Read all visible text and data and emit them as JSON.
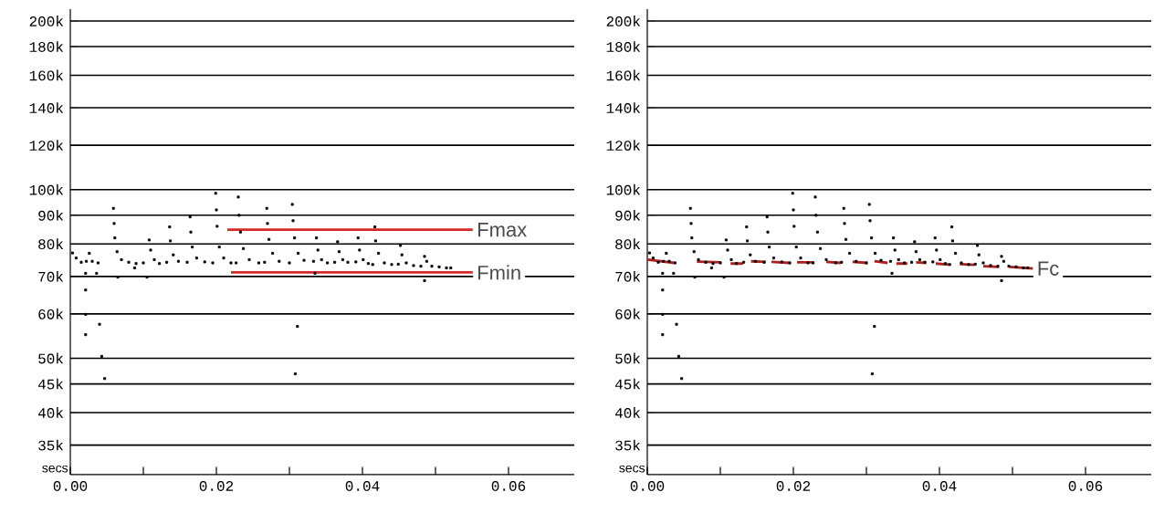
{
  "chart_data": [
    {
      "type": "scatter",
      "xlabel": "secs",
      "log": true,
      "grid": "y",
      "marker": "square",
      "xlim": [
        0,
        0.069
      ],
      "ylim": [
        31000,
        210000
      ],
      "xticks": [
        {
          "value": 0,
          "label": "0.00"
        },
        {
          "value": 0.01,
          "label": null
        },
        {
          "value": 0.02,
          "label": "0.02"
        },
        {
          "value": 0.03,
          "label": null
        },
        {
          "value": 0.04,
          "label": "0.04"
        },
        {
          "value": 0.05,
          "label": null
        },
        {
          "value": 0.06,
          "label": "0.06"
        }
      ],
      "yticks": [
        {
          "value": 35000,
          "label": "35k"
        },
        {
          "value": 40000,
          "label": "40k"
        },
        {
          "value": 45000,
          "label": "45k"
        },
        {
          "value": 50000,
          "label": "50k"
        },
        {
          "value": 60000,
          "label": "60k"
        },
        {
          "value": 70000,
          "label": "70k"
        },
        {
          "value": 80000,
          "label": "80k"
        },
        {
          "value": 90000,
          "label": "90k"
        },
        {
          "value": 100000,
          "label": "100k"
        },
        {
          "value": 120000,
          "label": "120k"
        },
        {
          "value": 140000,
          "label": "140k"
        },
        {
          "value": 160000,
          "label": "160k"
        },
        {
          "value": 180000,
          "label": "180k"
        },
        {
          "value": 200000,
          "label": "200k"
        }
      ],
      "series": [
        {
          "color": "#000000",
          "x": [
            0.0003,
            0.0008,
            0.0015,
            0.0022,
            0.0026,
            0.003,
            0.0038,
            0.0021,
            0.0021,
            0.0021,
            0.0021,
            0.004,
            0.0043,
            0.0047,
            0.0036,
            0.0059,
            0.006,
            0.0061,
            0.0064,
            0.007,
            0.008,
            0.009,
            0.01,
            0.0065,
            0.0105,
            0.0088,
            0.0108,
            0.011,
            0.0115,
            0.0122,
            0.0132,
            0.0136,
            0.0137,
            0.0141,
            0.0148,
            0.016,
            0.0164,
            0.0165,
            0.0167,
            0.0173,
            0.0184,
            0.0195,
            0.0199,
            0.02,
            0.0201,
            0.0204,
            0.021,
            0.022,
            0.0227,
            0.023,
            0.0231,
            0.0233,
            0.0237,
            0.0245,
            0.0258,
            0.0266,
            0.0269,
            0.027,
            0.0272,
            0.0277,
            0.0286,
            0.03,
            0.0304,
            0.0305,
            0.0307,
            0.0312,
            0.032,
            0.0333,
            0.0311,
            0.0308,
            0.0335,
            0.0337,
            0.0339,
            0.0344,
            0.0352,
            0.0362,
            0.0366,
            0.0368,
            0.0373,
            0.038,
            0.0391,
            0.0394,
            0.0396,
            0.0401,
            0.0408,
            0.0414,
            0.0417,
            0.0418,
            0.0422,
            0.043,
            0.044,
            0.0449,
            0.0452,
            0.0454,
            0.046,
            0.047,
            0.048,
            0.0485,
            0.0488,
            0.0495,
            0.0505,
            0.0515,
            0.0521,
            0.0485
          ],
          "values": [
            77100,
            75500,
            74200,
            74500,
            77000,
            74500,
            74000,
            70900,
            66200,
            59900,
            55100,
            57500,
            50400,
            46000,
            70900,
            92600,
            87000,
            82000,
            77500,
            75000,
            74200,
            73800,
            74000,
            69800,
            69800,
            72500,
            81300,
            78000,
            75000,
            73800,
            74200,
            85800,
            81000,
            76500,
            74500,
            74200,
            89400,
            84000,
            79000,
            75500,
            74300,
            74000,
            98500,
            92000,
            86000,
            79000,
            75500,
            74000,
            74000,
            97000,
            90000,
            84000,
            78500,
            75000,
            74000,
            74200,
            92600,
            87000,
            81500,
            77000,
            74500,
            74000,
            94100,
            88000,
            82000,
            77000,
            74800,
            74500,
            57000,
            46900,
            70900,
            82000,
            78000,
            75000,
            74000,
            74200,
            80700,
            77500,
            75000,
            74200,
            74300,
            82000,
            78000,
            75000,
            73800,
            73500,
            85800,
            81000,
            77000,
            74000,
            73500,
            73600,
            79500,
            76500,
            74000,
            73200,
            73000,
            76000,
            74500,
            73000,
            72800,
            72500,
            72500,
            68800
          ]
        },
        {
          "type": "line",
          "name": "Fmax",
          "marker": "none",
          "color": "#d42a2a",
          "x": [
            0.0215,
            0.0551
          ],
          "values": [
            84800,
            84800
          ]
        },
        {
          "type": "line",
          "name": "Fmin",
          "marker": "none",
          "color": "#d42a2a",
          "x": [
            0.022,
            0.0551
          ],
          "values": [
            71200,
            71200
          ]
        }
      ]
    },
    {
      "type": "scatter",
      "xlabel": "secs",
      "log": true,
      "grid": "y",
      "marker": "square",
      "xlim": [
        0,
        0.069
      ],
      "ylim": [
        31000,
        210000
      ],
      "xticks": [
        {
          "value": 0,
          "label": "0.00"
        },
        {
          "value": 0.01,
          "label": null
        },
        {
          "value": 0.02,
          "label": "0.02"
        },
        {
          "value": 0.03,
          "label": null
        },
        {
          "value": 0.04,
          "label": "0.04"
        },
        {
          "value": 0.05,
          "label": null
        },
        {
          "value": 0.06,
          "label": "0.06"
        }
      ],
      "yticks": [
        {
          "value": 35000,
          "label": "35k"
        },
        {
          "value": 40000,
          "label": "40k"
        },
        {
          "value": 45000,
          "label": "45k"
        },
        {
          "value": 50000,
          "label": "50k"
        },
        {
          "value": 60000,
          "label": "60k"
        },
        {
          "value": 70000,
          "label": "70k"
        },
        {
          "value": 80000,
          "label": "80k"
        },
        {
          "value": 90000,
          "label": "90k"
        },
        {
          "value": 100000,
          "label": "100k"
        },
        {
          "value": 120000,
          "label": "120k"
        },
        {
          "value": 140000,
          "label": "140k"
        },
        {
          "value": 160000,
          "label": "160k"
        },
        {
          "value": 180000,
          "label": "180k"
        },
        {
          "value": 200000,
          "label": "200k"
        }
      ],
      "series": [
        {
          "color": "#000000",
          "x": [
            0.0003,
            0.0008,
            0.0015,
            0.0022,
            0.0026,
            0.003,
            0.0038,
            0.0021,
            0.0021,
            0.0021,
            0.0021,
            0.004,
            0.0043,
            0.0047,
            0.0036,
            0.0059,
            0.006,
            0.0061,
            0.0064,
            0.007,
            0.008,
            0.009,
            0.01,
            0.0065,
            0.0105,
            0.0088,
            0.0108,
            0.011,
            0.0115,
            0.0122,
            0.0132,
            0.0136,
            0.0137,
            0.0141,
            0.0148,
            0.016,
            0.0164,
            0.0165,
            0.0167,
            0.0173,
            0.0184,
            0.0195,
            0.0199,
            0.02,
            0.0201,
            0.0204,
            0.021,
            0.022,
            0.0227,
            0.023,
            0.0231,
            0.0233,
            0.0237,
            0.0245,
            0.0258,
            0.0266,
            0.0269,
            0.027,
            0.0272,
            0.0277,
            0.0286,
            0.03,
            0.0304,
            0.0305,
            0.0307,
            0.0312,
            0.032,
            0.0333,
            0.0311,
            0.0308,
            0.0335,
            0.0337,
            0.0339,
            0.0344,
            0.0352,
            0.0362,
            0.0366,
            0.0368,
            0.0373,
            0.038,
            0.0391,
            0.0394,
            0.0396,
            0.0401,
            0.0408,
            0.0414,
            0.0417,
            0.0418,
            0.0422,
            0.043,
            0.044,
            0.0449,
            0.0452,
            0.0454,
            0.046,
            0.047,
            0.048,
            0.0485,
            0.0488,
            0.0495,
            0.0505,
            0.0515,
            0.0521,
            0.0485
          ],
          "values": [
            77100,
            75500,
            74200,
            74500,
            77000,
            74500,
            74000,
            70900,
            66200,
            59900,
            55100,
            57500,
            50400,
            46000,
            70900,
            92600,
            87000,
            82000,
            77500,
            75000,
            74200,
            73800,
            74000,
            69800,
            69800,
            72500,
            81300,
            78000,
            75000,
            73800,
            74200,
            85800,
            81000,
            76500,
            74500,
            74200,
            89400,
            84000,
            79000,
            75500,
            74300,
            74000,
            98500,
            92000,
            86000,
            79000,
            75500,
            74000,
            74000,
            97000,
            90000,
            84000,
            78500,
            75000,
            74000,
            74200,
            92600,
            87000,
            81500,
            77000,
            74500,
            74000,
            94100,
            88000,
            82000,
            77000,
            74800,
            74500,
            57000,
            46900,
            70900,
            82000,
            78000,
            75000,
            74000,
            74200,
            80700,
            77500,
            75000,
            74200,
            74300,
            82000,
            78000,
            75000,
            73800,
            73500,
            85800,
            81000,
            77000,
            74000,
            73500,
            73600,
            79500,
            76500,
            74000,
            73200,
            73000,
            76000,
            74500,
            73000,
            72800,
            72500,
            72500,
            68800
          ]
        },
        {
          "type": "line",
          "name": "Fc",
          "marker": "none",
          "color": "#b01e1e",
          "x": [
            0.0,
            0.0037,
            0.005,
            0.0068,
            0.0101,
            0.0107,
            0.0114,
            0.0131,
            0.0136,
            0.0142,
            0.0162,
            0.0166,
            0.017,
            0.0195,
            0.02,
            0.0205,
            0.0228,
            0.0235,
            0.0245,
            0.0265,
            0.0272,
            0.0281,
            0.0301,
            0.0305,
            0.0311,
            0.0329,
            0.0335,
            0.0341,
            0.0356,
            0.036,
            0.0368,
            0.0382,
            0.0388,
            0.0395,
            0.0413,
            0.042,
            0.0428,
            0.0448,
            0.0455,
            0.046,
            0.0481,
            0.049,
            0.0496,
            0.0528
          ],
          "values": [
            75000,
            74000,
            null,
            74400,
            74200,
            null,
            73800,
            73800,
            null,
            74500,
            74300,
            null,
            74300,
            74000,
            null,
            74200,
            74200,
            null,
            74300,
            74000,
            null,
            74300,
            74000,
            null,
            74500,
            74000,
            null,
            73800,
            73800,
            null,
            74200,
            74000,
            null,
            73800,
            73500,
            null,
            73600,
            73400,
            null,
            73000,
            72800,
            null,
            72800,
            72300
          ]
        }
      ]
    }
  ]
}
